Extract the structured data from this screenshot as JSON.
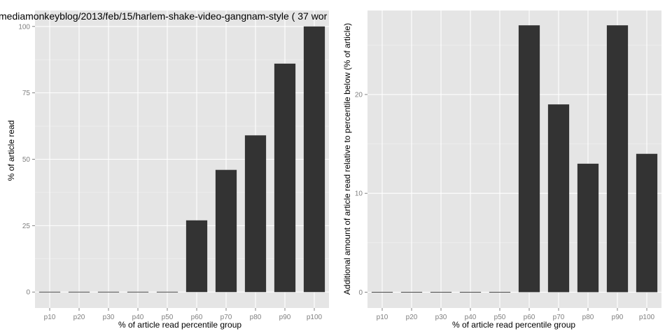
{
  "chart_data": [
    {
      "type": "bar",
      "title": "mediamonkeyblog/2013/feb/15/harlem-shake-video-gangnam-style ( 37 wor",
      "xlabel": "% of article read percentile group",
      "ylabel": "% of article read",
      "categories": [
        "p10",
        "p20",
        "p30",
        "p40",
        "p50",
        "p60",
        "p70",
        "p80",
        "p90",
        "p100"
      ],
      "values": [
        0,
        0,
        0,
        0,
        0,
        27,
        46,
        59,
        86,
        100
      ],
      "ylim": [
        -6,
        106
      ],
      "yticks": [
        0,
        25,
        50,
        75,
        100
      ],
      "grid": true,
      "bar_color": "#333333",
      "panel_color": "#e5e5e5"
    },
    {
      "type": "bar",
      "title": "",
      "xlabel": "% of article read percentile group",
      "ylabel": "Additional amount of article read relative to percentile below (% of article)",
      "categories": [
        "p10",
        "p20",
        "p30",
        "p40",
        "p50",
        "p60",
        "p70",
        "p80",
        "p90",
        "p100"
      ],
      "values": [
        0,
        0,
        0,
        0,
        0,
        27,
        19,
        13,
        27,
        14
      ],
      "ylim": [
        -1.6,
        28.5
      ],
      "yticks": [
        0,
        10,
        20
      ],
      "grid": true,
      "bar_color": "#333333",
      "panel_color": "#e5e5e5"
    }
  ]
}
